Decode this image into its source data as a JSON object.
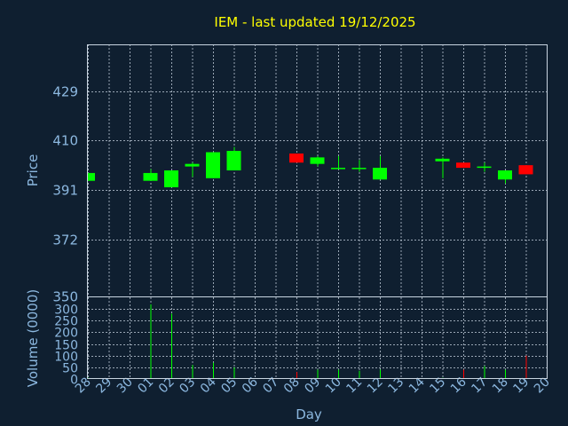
{
  "chart_data": {
    "title": "IEM - last updated 19/12/2025",
    "colors": {
      "background": "#0f1f30",
      "up": "#00ff00",
      "down": "#ff0000",
      "title": "#ffff00",
      "axis_text": "#8cb8e0",
      "grid": "#c8d4e0"
    },
    "days": [
      "28",
      "29",
      "30",
      "01",
      "02",
      "03",
      "04",
      "05",
      "06",
      "07",
      "08",
      "09",
      "10",
      "11",
      "12",
      "13",
      "14",
      "15",
      "16",
      "17",
      "18",
      "19",
      "20"
    ],
    "price_panel": {
      "type": "candlestick",
      "ylabel": "Price",
      "ylim": [
        350,
        447
      ],
      "yticks": [
        350,
        372,
        391,
        410,
        429
      ],
      "grid": true,
      "candles": [
        {
          "day": "28",
          "open": 394.5,
          "high": 397.5,
          "low": 394.5,
          "close": 397.5
        },
        {
          "day": "01",
          "open": 394.5,
          "high": 399.0,
          "low": 394.5,
          "close": 397.5
        },
        {
          "day": "02",
          "open": 392.0,
          "high": 398.5,
          "low": 392.0,
          "close": 398.5
        },
        {
          "day": "03",
          "open": 400.0,
          "high": 401.5,
          "low": 396.0,
          "close": 401.0
        },
        {
          "day": "04",
          "open": 395.5,
          "high": 405.5,
          "low": 395.5,
          "close": 405.5
        },
        {
          "day": "05",
          "open": 398.5,
          "high": 407.5,
          "low": 398.5,
          "close": 406.0
        },
        {
          "day": "08",
          "open": 405.0,
          "high": 405.0,
          "low": 401.5,
          "close": 401.5
        },
        {
          "day": "09",
          "open": 401.0,
          "high": 404.0,
          "low": 400.0,
          "close": 403.5
        },
        {
          "day": "10",
          "open": 399.0,
          "high": 404.0,
          "low": 399.0,
          "close": 399.5
        },
        {
          "day": "11",
          "open": 399.0,
          "high": 402.5,
          "low": 398.0,
          "close": 399.5
        },
        {
          "day": "12",
          "open": 395.0,
          "high": 404.0,
          "low": 395.0,
          "close": 399.5
        },
        {
          "day": "15",
          "open": 402.0,
          "high": 403.5,
          "low": 395.5,
          "close": 403.0
        },
        {
          "day": "16",
          "open": 401.5,
          "high": 401.5,
          "low": 399.5,
          "close": 399.5
        },
        {
          "day": "17",
          "open": 399.5,
          "high": 401.5,
          "low": 398.0,
          "close": 400.0
        },
        {
          "day": "18",
          "open": 395.0,
          "high": 398.5,
          "low": 393.5,
          "close": 398.5
        },
        {
          "day": "19",
          "open": 400.5,
          "high": 400.5,
          "low": 397.0,
          "close": 397.0
        }
      ]
    },
    "volume_panel": {
      "type": "bar",
      "ylabel": "Volume (0000)",
      "xlabel": "Day",
      "ylim": [
        0,
        350
      ],
      "yticks": [
        0,
        50,
        100,
        150,
        200,
        250,
        300,
        350
      ],
      "grid": true,
      "bars": [
        {
          "day": "28",
          "value": 5,
          "dir": "up"
        },
        {
          "day": "01",
          "value": 320,
          "dir": "up"
        },
        {
          "day": "02",
          "value": 280,
          "dir": "up"
        },
        {
          "day": "03",
          "value": 60,
          "dir": "up"
        },
        {
          "day": "04",
          "value": 70,
          "dir": "up"
        },
        {
          "day": "05",
          "value": 50,
          "dir": "up"
        },
        {
          "day": "08",
          "value": 30,
          "dir": "down"
        },
        {
          "day": "09",
          "value": 40,
          "dir": "up"
        },
        {
          "day": "10",
          "value": 40,
          "dir": "up"
        },
        {
          "day": "11",
          "value": 35,
          "dir": "up"
        },
        {
          "day": "12",
          "value": 40,
          "dir": "up"
        },
        {
          "day": "15",
          "value": 5,
          "dir": "up"
        },
        {
          "day": "16",
          "value": 40,
          "dir": "down"
        },
        {
          "day": "17",
          "value": 55,
          "dir": "up"
        },
        {
          "day": "18",
          "value": 40,
          "dir": "up"
        },
        {
          "day": "19",
          "value": 100,
          "dir": "down"
        }
      ]
    }
  }
}
